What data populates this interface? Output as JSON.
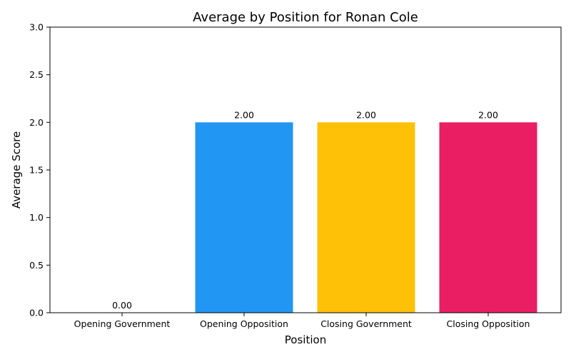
{
  "chart_data": {
    "type": "bar",
    "title": "Average by Position for Ronan Cole",
    "xlabel": "Position",
    "ylabel": "Average Score",
    "categories": [
      "Opening Government",
      "Opening Opposition",
      "Closing Government",
      "Closing Opposition"
    ],
    "values": [
      0.0,
      2.0,
      2.0,
      2.0
    ],
    "value_labels": [
      "0.00",
      "2.00",
      "2.00",
      "2.00"
    ],
    "colors": [
      "#4CAF50",
      "#2196F3",
      "#FFC107",
      "#E91E63"
    ],
    "ylim": [
      0,
      3
    ],
    "yticks": [
      0.0,
      0.5,
      1.0,
      1.5,
      2.0,
      2.5,
      3.0
    ],
    "ytick_labels": [
      "0.0",
      "0.5",
      "1.0",
      "1.5",
      "2.0",
      "2.5",
      "3.0"
    ],
    "grid": false,
    "legend": "none"
  }
}
